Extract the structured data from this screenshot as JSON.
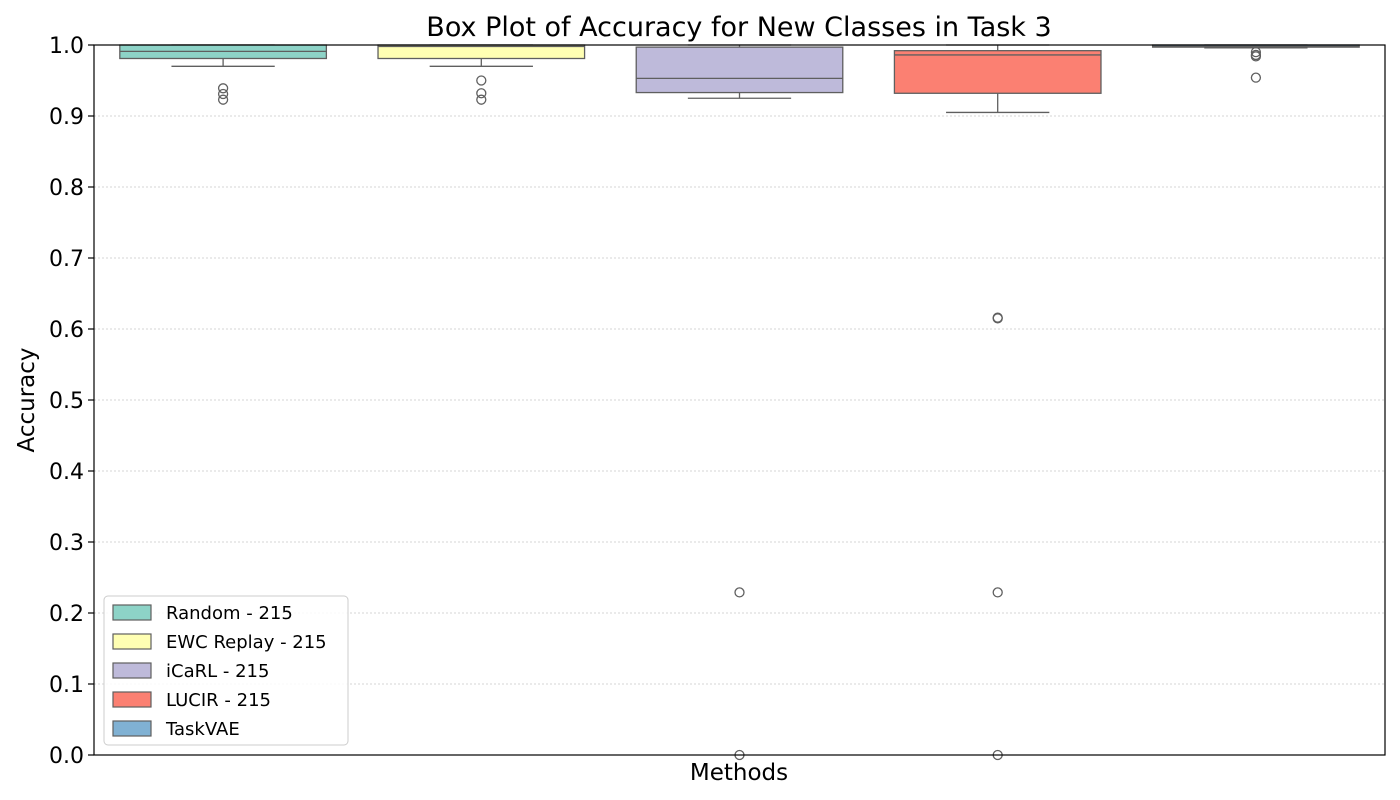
{
  "chart_data": {
    "type": "box",
    "title": "Box Plot of Accuracy for New Classes in Task 3",
    "xlabel": "Methods",
    "ylabel": "Accuracy",
    "ylim": [
      0.0,
      1.0
    ],
    "yticks": [
      "0.0",
      "0.1",
      "0.2",
      "0.3",
      "0.4",
      "0.5",
      "0.6",
      "0.7",
      "0.8",
      "0.9",
      "1.0"
    ],
    "grid": "horizontal-dotted",
    "legend_position": "lower-left",
    "series": [
      {
        "name": "Random - 215",
        "color": "#8dd3c7",
        "whisker_low": 0.97,
        "q1": 0.981,
        "median": 0.991,
        "q3": 1.0,
        "whisker_high": 1.0,
        "outliers": [
          0.939,
          0.931,
          0.923
        ]
      },
      {
        "name": "EWC Replay - 215",
        "color": "#ffffb3",
        "whisker_low": 0.97,
        "q1": 0.981,
        "median": 0.998,
        "q3": 1.0,
        "whisker_high": 1.0,
        "outliers": [
          0.95,
          0.932,
          0.923
        ]
      },
      {
        "name": "iCaRL - 215",
        "color": "#bebada",
        "whisker_low": 0.925,
        "q1": 0.933,
        "median": 0.953,
        "q3": 0.997,
        "whisker_high": 1.0,
        "outliers": [
          0.229,
          0.0
        ]
      },
      {
        "name": "LUCIR - 215",
        "color": "#fb8072",
        "whisker_low": 0.905,
        "q1": 0.932,
        "median": 0.986,
        "q3": 0.992,
        "whisker_high": 1.0,
        "outliers": [
          0.616,
          0.615,
          0.229,
          0.0
        ]
      },
      {
        "name": "TaskVAE",
        "color": "#80b1d3",
        "whisker_low": 0.996,
        "q1": 0.997,
        "median": 0.998,
        "q3": 1.0,
        "whisker_high": 1.0,
        "outliers": [
          0.99,
          0.986,
          0.984,
          0.954
        ]
      }
    ]
  }
}
